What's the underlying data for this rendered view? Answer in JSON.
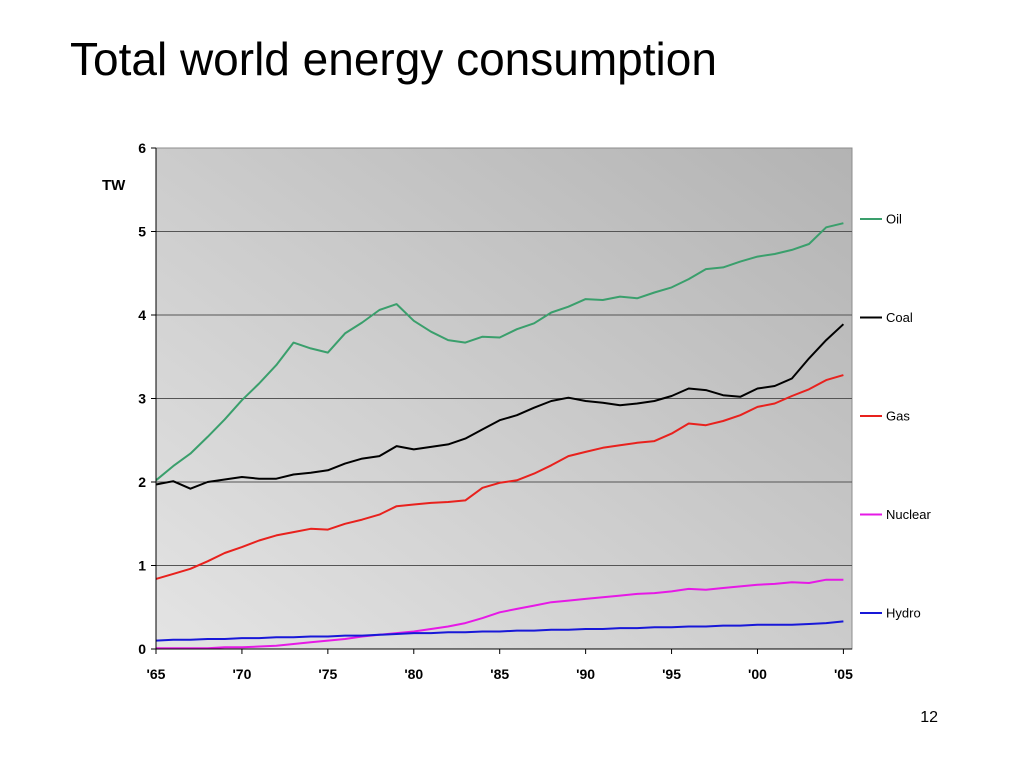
{
  "slide": {
    "title": "Total world energy consumption",
    "page_number": "12"
  },
  "chart_data": {
    "type": "line",
    "title": "",
    "xlabel": "",
    "ylabel": "TW",
    "xlim": [
      1965,
      2005.5
    ],
    "ylim": [
      0,
      6
    ],
    "x_ticks": [
      1965,
      1970,
      1975,
      1980,
      1985,
      1990,
      1995,
      2000,
      2005
    ],
    "x_tick_labels": [
      "'65",
      "'70",
      "'75",
      "'80",
      "'85",
      "'90",
      "'95",
      "'00",
      "'05"
    ],
    "y_ticks": [
      0,
      1,
      2,
      3,
      4,
      5,
      6
    ],
    "y_tick_labels": [
      "0",
      "1",
      "2",
      "3",
      "4",
      "5",
      "6"
    ],
    "grid": "horizontal",
    "legend": "right",
    "colors": {
      "plot_gradient_top_right": "#b3b3b3",
      "plot_gradient_bottom_left": "#e4e4e4"
    },
    "series": [
      {
        "name": "Oil",
        "color": "#3a9f6c",
        "points": [
          [
            1965,
            2.02
          ],
          [
            1966,
            2.19
          ],
          [
            1967,
            2.34
          ],
          [
            1968,
            2.54
          ],
          [
            1969,
            2.75
          ],
          [
            1970,
            2.98
          ],
          [
            1971,
            3.18
          ],
          [
            1972,
            3.4
          ],
          [
            1973,
            3.67
          ],
          [
            1974,
            3.6
          ],
          [
            1975,
            3.55
          ],
          [
            1976,
            3.78
          ],
          [
            1977,
            3.91
          ],
          [
            1978,
            4.06
          ],
          [
            1979,
            4.13
          ],
          [
            1980,
            3.93
          ],
          [
            1981,
            3.8
          ],
          [
            1982,
            3.7
          ],
          [
            1983,
            3.67
          ],
          [
            1984,
            3.74
          ],
          [
            1985,
            3.73
          ],
          [
            1986,
            3.83
          ],
          [
            1987,
            3.9
          ],
          [
            1988,
            4.03
          ],
          [
            1989,
            4.1
          ],
          [
            1990,
            4.19
          ],
          [
            1991,
            4.18
          ],
          [
            1992,
            4.22
          ],
          [
            1993,
            4.2
          ],
          [
            1994,
            4.27
          ],
          [
            1995,
            4.33
          ],
          [
            1996,
            4.43
          ],
          [
            1997,
            4.55
          ],
          [
            1998,
            4.57
          ],
          [
            1999,
            4.64
          ],
          [
            2000,
            4.7
          ],
          [
            2001,
            4.73
          ],
          [
            2002,
            4.78
          ],
          [
            2003,
            4.85
          ],
          [
            2004,
            5.05
          ],
          [
            2005,
            5.1
          ]
        ]
      },
      {
        "name": "Coal",
        "color": "#000000",
        "points": [
          [
            1965,
            1.97
          ],
          [
            1966,
            2.01
          ],
          [
            1967,
            1.92
          ],
          [
            1968,
            2.0
          ],
          [
            1969,
            2.03
          ],
          [
            1970,
            2.06
          ],
          [
            1971,
            2.04
          ],
          [
            1972,
            2.04
          ],
          [
            1973,
            2.09
          ],
          [
            1974,
            2.11
          ],
          [
            1975,
            2.14
          ],
          [
            1976,
            2.22
          ],
          [
            1977,
            2.28
          ],
          [
            1978,
            2.31
          ],
          [
            1979,
            2.43
          ],
          [
            1980,
            2.39
          ],
          [
            1981,
            2.42
          ],
          [
            1982,
            2.45
          ],
          [
            1983,
            2.52
          ],
          [
            1984,
            2.63
          ],
          [
            1985,
            2.74
          ],
          [
            1986,
            2.8
          ],
          [
            1987,
            2.89
          ],
          [
            1988,
            2.97
          ],
          [
            1989,
            3.01
          ],
          [
            1990,
            2.97
          ],
          [
            1991,
            2.95
          ],
          [
            1992,
            2.92
          ],
          [
            1993,
            2.94
          ],
          [
            1994,
            2.97
          ],
          [
            1995,
            3.03
          ],
          [
            1996,
            3.12
          ],
          [
            1997,
            3.1
          ],
          [
            1998,
            3.04
          ],
          [
            1999,
            3.02
          ],
          [
            2000,
            3.12
          ],
          [
            2001,
            3.15
          ],
          [
            2002,
            3.24
          ],
          [
            2003,
            3.48
          ],
          [
            2004,
            3.7
          ],
          [
            2005,
            3.89
          ]
        ]
      },
      {
        "name": "Gas",
        "color": "#e8211d",
        "points": [
          [
            1965,
            0.84
          ],
          [
            1966,
            0.9
          ],
          [
            1967,
            0.96
          ],
          [
            1968,
            1.05
          ],
          [
            1969,
            1.15
          ],
          [
            1970,
            1.22
          ],
          [
            1971,
            1.3
          ],
          [
            1972,
            1.36
          ],
          [
            1973,
            1.4
          ],
          [
            1974,
            1.44
          ],
          [
            1975,
            1.43
          ],
          [
            1976,
            1.5
          ],
          [
            1977,
            1.55
          ],
          [
            1978,
            1.61
          ],
          [
            1979,
            1.71
          ],
          [
            1980,
            1.73
          ],
          [
            1981,
            1.75
          ],
          [
            1982,
            1.76
          ],
          [
            1983,
            1.78
          ],
          [
            1984,
            1.93
          ],
          [
            1985,
            1.99
          ],
          [
            1986,
            2.02
          ],
          [
            1987,
            2.1
          ],
          [
            1988,
            2.2
          ],
          [
            1989,
            2.31
          ],
          [
            1990,
            2.36
          ],
          [
            1991,
            2.41
          ],
          [
            1992,
            2.44
          ],
          [
            1993,
            2.47
          ],
          [
            1994,
            2.49
          ],
          [
            1995,
            2.58
          ],
          [
            1996,
            2.7
          ],
          [
            1997,
            2.68
          ],
          [
            1998,
            2.73
          ],
          [
            1999,
            2.8
          ],
          [
            2000,
            2.9
          ],
          [
            2001,
            2.94
          ],
          [
            2002,
            3.03
          ],
          [
            2003,
            3.11
          ],
          [
            2004,
            3.22
          ],
          [
            2005,
            3.28
          ]
        ]
      },
      {
        "name": "Nuclear",
        "color": "#e619e6",
        "points": [
          [
            1965,
            0.01
          ],
          [
            1966,
            0.01
          ],
          [
            1967,
            0.01
          ],
          [
            1968,
            0.01
          ],
          [
            1969,
            0.02
          ],
          [
            1970,
            0.02
          ],
          [
            1971,
            0.03
          ],
          [
            1972,
            0.04
          ],
          [
            1973,
            0.06
          ],
          [
            1974,
            0.08
          ],
          [
            1975,
            0.1
          ],
          [
            1976,
            0.12
          ],
          [
            1977,
            0.15
          ],
          [
            1978,
            0.17
          ],
          [
            1979,
            0.19
          ],
          [
            1980,
            0.21
          ],
          [
            1981,
            0.24
          ],
          [
            1982,
            0.27
          ],
          [
            1983,
            0.31
          ],
          [
            1984,
            0.37
          ],
          [
            1985,
            0.44
          ],
          [
            1986,
            0.48
          ],
          [
            1987,
            0.52
          ],
          [
            1988,
            0.56
          ],
          [
            1989,
            0.58
          ],
          [
            1990,
            0.6
          ],
          [
            1991,
            0.62
          ],
          [
            1992,
            0.64
          ],
          [
            1993,
            0.66
          ],
          [
            1994,
            0.67
          ],
          [
            1995,
            0.69
          ],
          [
            1996,
            0.72
          ],
          [
            1997,
            0.71
          ],
          [
            1998,
            0.73
          ],
          [
            1999,
            0.75
          ],
          [
            2000,
            0.77
          ],
          [
            2001,
            0.78
          ],
          [
            2002,
            0.8
          ],
          [
            2003,
            0.79
          ],
          [
            2004,
            0.83
          ],
          [
            2005,
            0.83
          ]
        ]
      },
      {
        "name": "Hydro",
        "color": "#1818d8",
        "points": [
          [
            1965,
            0.1
          ],
          [
            1966,
            0.11
          ],
          [
            1967,
            0.11
          ],
          [
            1968,
            0.12
          ],
          [
            1969,
            0.12
          ],
          [
            1970,
            0.13
          ],
          [
            1971,
            0.13
          ],
          [
            1972,
            0.14
          ],
          [
            1973,
            0.14
          ],
          [
            1974,
            0.15
          ],
          [
            1975,
            0.15
          ],
          [
            1976,
            0.16
          ],
          [
            1977,
            0.16
          ],
          [
            1978,
            0.17
          ],
          [
            1979,
            0.18
          ],
          [
            1980,
            0.19
          ],
          [
            1981,
            0.19
          ],
          [
            1982,
            0.2
          ],
          [
            1983,
            0.2
          ],
          [
            1984,
            0.21
          ],
          [
            1985,
            0.21
          ],
          [
            1986,
            0.22
          ],
          [
            1987,
            0.22
          ],
          [
            1988,
            0.23
          ],
          [
            1989,
            0.23
          ],
          [
            1990,
            0.24
          ],
          [
            1991,
            0.24
          ],
          [
            1992,
            0.25
          ],
          [
            1993,
            0.25
          ],
          [
            1994,
            0.26
          ],
          [
            1995,
            0.26
          ],
          [
            1996,
            0.27
          ],
          [
            1997,
            0.27
          ],
          [
            1998,
            0.28
          ],
          [
            1999,
            0.28
          ],
          [
            2000,
            0.29
          ],
          [
            2001,
            0.29
          ],
          [
            2002,
            0.29
          ],
          [
            2003,
            0.3
          ],
          [
            2004,
            0.31
          ],
          [
            2005,
            0.33
          ]
        ]
      }
    ]
  }
}
